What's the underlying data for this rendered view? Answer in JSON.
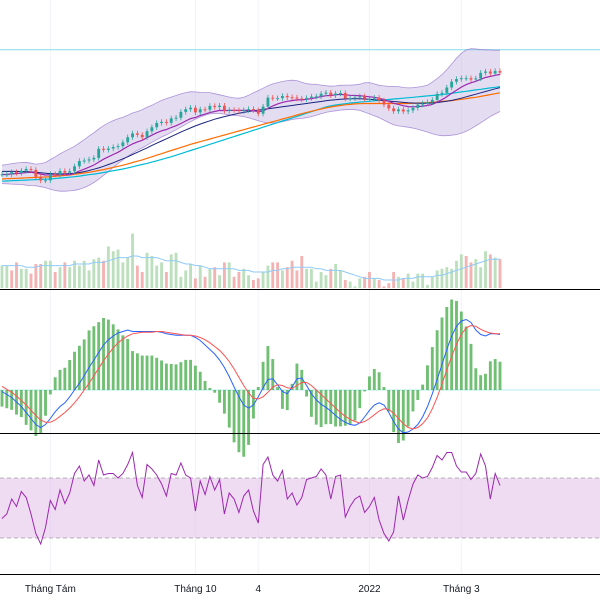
{
  "colors": {
    "up": "#26a69a",
    "down": "#ef5350",
    "bb_fill": "#b39ddb",
    "bb_line": "#7e57c2",
    "ma_fast": "#9c27b0",
    "ma_mid": "#1a237e",
    "ma_slow": "#ff6d00",
    "ma_long": "#00bcd4",
    "macd": "#2962ff",
    "signal": "#ff5252",
    "hist": "#4caf50",
    "rsi": "#9c27b0",
    "rsi_band": "#e1bee7",
    "grid": "#f0f3fa",
    "divider": "#000000"
  },
  "x_axis": {
    "ticks": [
      {
        "label": "Tháng Tám",
        "index": 10
      },
      {
        "label": "Tháng 10",
        "index": 40
      },
      {
        "label": "4",
        "index": 53
      },
      {
        "label": "2022",
        "index": 76
      },
      {
        "label": "Tháng 3",
        "index": 95
      }
    ]
  },
  "chart_data": [
    {
      "type": "line",
      "panel": "price",
      "x_count": 104,
      "y_range": [
        0,
        100
      ],
      "price_close": [
        34.1,
        34.1,
        35.1,
        34.7,
        35.7,
        36.5,
        36.1,
        33.0,
        31.3,
        31.4,
        34.2,
        34.0,
        35.6,
        34.8,
        35.5,
        37.7,
        40.1,
        40.3,
        40.8,
        41.5,
        45.6,
        45.1,
        45.7,
        46.4,
        46.8,
        48.5,
        50.8,
        52.5,
        51.9,
        50.8,
        53.5,
        55.3,
        57.2,
        57.7,
        57.3,
        59.3,
        59.6,
        62.2,
        63.4,
        64.1,
        62.0,
        63.4,
        63.2,
        64.9,
        64.4,
        65.0,
        62.7,
        63.1,
        63.0,
        62.6,
        63.0,
        63.5,
        63.0,
        61.4,
        64.6,
        68.6,
        68.4,
        68.4,
        69.4,
        68.8,
        68.7,
        68.2,
        67.8,
        68.5,
        69.1,
        69.2,
        70.4,
        70.9,
        69.7,
        70.5,
        70.7,
        68.2,
        68.3,
        68.7,
        69.2,
        68.2,
        68.2,
        68.6,
        67.4,
        65.5,
        63.8,
        62.5,
        63.3,
        62.4,
        62.9,
        64.0,
        65.5,
        66.0,
        66.6,
        67.6,
        70.3,
        70.8,
        73.2,
        75.8,
        77.0,
        77.4,
        77.4,
        76.8,
        77.3,
        79.8,
        80.4,
        79.5,
        80.6,
        79.9
      ],
      "ma_fast": [
        34.0,
        34.0,
        34.3,
        34.4,
        34.6,
        34.9,
        35.0,
        34.7,
        34.2,
        33.8,
        33.9,
        33.8,
        33.9,
        33.9,
        33.9,
        34.6,
        35.6,
        36.4,
        37.3,
        38.3,
        39.6,
        40.9,
        42.0,
        43.0,
        44.0,
        45.3,
        46.6,
        47.8,
        48.7,
        49.4,
        50.6,
        51.7,
        52.8,
        53.7,
        54.3,
        55.2,
        56.0,
        57.0,
        58.1,
        59.2,
        59.7,
        60.6,
        61.2,
        61.9,
        62.4,
        62.9,
        62.8,
        62.9,
        62.9,
        62.9,
        62.9,
        62.9,
        62.7,
        62.3,
        62.6,
        63.8,
        64.9,
        65.8,
        66.5,
        67.0,
        67.3,
        67.6,
        67.6,
        67.9,
        68.2,
        68.6,
        69.1,
        69.5,
        69.6,
        69.9,
        70.1,
        69.9,
        69.7,
        69.6,
        69.5,
        69.3,
        69.0,
        68.8,
        68.4,
        67.7,
        67.0,
        66.1,
        65.6,
        65.0,
        64.6,
        64.5,
        64.6,
        64.8,
        65.1,
        65.6,
        66.6,
        67.7,
        69.0,
        70.6,
        72.0,
        73.4,
        74.5,
        75.3,
        76.0,
        76.9,
        77.7,
        78.2,
        78.7,
        79.1
      ],
      "bb_upper": [
        38.2,
        38.5,
        38.9,
        39.2,
        39.4,
        39.5,
        39.1,
        38.7,
        38.9,
        39.4,
        40.7,
        42.0,
        43.3,
        44.5,
        45.6,
        46.7,
        48.2,
        49.7,
        51.3,
        52.8,
        54.5,
        56.0,
        57.3,
        58.3,
        59.1,
        59.8,
        60.7,
        61.7,
        62.4,
        63.2,
        64.3,
        65.2,
        66.3,
        67.4,
        68.2,
        68.9,
        69.6,
        70.3,
        70.9,
        71.3,
        71.2,
        71.0,
        70.9,
        70.9,
        70.4,
        69.9,
        69.4,
        68.9,
        68.5,
        68.4,
        68.8,
        69.7,
        70.8,
        71.8,
        72.9,
        74.0,
        74.8,
        75.4,
        75.9,
        76.3,
        76.5,
        76.3,
        75.6,
        74.9,
        74.7,
        74.6,
        74.3,
        74.0,
        73.8,
        73.9,
        74.2,
        74.3,
        74.3,
        74.4,
        74.7,
        75.3,
        75.4,
        74.8,
        74.2,
        73.9,
        73.7,
        73.7,
        73.6,
        73.2,
        73.0,
        73.1,
        73.4,
        73.7,
        74.3,
        75.6,
        77.2,
        79.0,
        81.2,
        83.8,
        86.4,
        88.6,
        90.1,
        90.7,
        90.6,
        90.3,
        90.2,
        90.1,
        90.0,
        90.0
      ],
      "bb_lower": [
        29.9,
        29.8,
        29.7,
        29.6,
        29.5,
        29.2,
        29.0,
        28.9,
        28.5,
        28.1,
        27.4,
        26.8,
        26.5,
        26.5,
        26.6,
        26.9,
        27.4,
        28.1,
        29.1,
        30.4,
        31.9,
        33.6,
        35.3,
        37.2,
        38.9,
        40.6,
        42.2,
        43.6,
        44.9,
        46.0,
        47.2,
        48.5,
        49.7,
        50.9,
        51.9,
        53.0,
        54.2,
        55.4,
        56.6,
        57.8,
        58.9,
        59.9,
        60.7,
        61.3,
        61.5,
        61.5,
        61.2,
        60.9,
        60.6,
        60.4,
        60.1,
        59.6,
        58.9,
        58.2,
        57.6,
        57.2,
        57.2,
        57.4,
        57.8,
        58.3,
        58.8,
        59.1,
        59.3,
        59.6,
        60.1,
        60.7,
        61.4,
        62.0,
        62.4,
        62.7,
        63.0,
        63.2,
        63.3,
        63.2,
        62.9,
        62.1,
        61.3,
        60.5,
        59.6,
        58.5,
        57.4,
        56.4,
        55.9,
        55.6,
        55.3,
        54.9,
        54.4,
        53.8,
        53.1,
        52.4,
        51.8,
        51.5,
        51.5,
        51.7,
        52.0,
        52.6,
        53.5,
        54.6,
        55.9,
        57.3,
        58.7,
        60.1,
        61.3,
        62.4
      ],
      "ma_mid": [
        35.4,
        35.4,
        35.4,
        35.4,
        35.3,
        35.3,
        35.2,
        35.0,
        34.8,
        34.6,
        34.4,
        34.3,
        34.3,
        34.3,
        34.4,
        34.6,
        34.9,
        35.3,
        35.8,
        36.4,
        37.0,
        37.7,
        38.5,
        39.3,
        40.2,
        41.1,
        42.0,
        43.0,
        44.0,
        45.0,
        46.0,
        47.1,
        48.1,
        49.1,
        50.1,
        51.1,
        52.1,
        53.1,
        54.1,
        55.0,
        55.9,
        56.7,
        57.5,
        58.2,
        58.9,
        59.5,
        60.1,
        60.6,
        61.1,
        61.6,
        62.0,
        62.4,
        62.7,
        63.0,
        63.3,
        63.6,
        63.9,
        64.2,
        64.5,
        64.8,
        65.1,
        65.4,
        65.7,
        66.0,
        66.3,
        66.6,
        66.9,
        67.2,
        67.5,
        67.7,
        67.9,
        68.0,
        68.1,
        68.1,
        68.1,
        68.0,
        67.9,
        67.7,
        67.5,
        67.3,
        67.1,
        66.9,
        66.7,
        66.5,
        66.3,
        66.2,
        66.1,
        66.1,
        66.1,
        66.2,
        66.4,
        66.7,
        67.0,
        67.4,
        67.9,
        68.4,
        69.0,
        69.6,
        70.2,
        70.8,
        71.4,
        72.0,
        72.6,
        73.1
      ],
      "ma_slow": [
        32.0,
        32.1,
        32.2,
        32.3,
        32.4,
        32.5,
        32.6,
        32.7,
        32.8,
        32.9,
        33.0,
        33.2,
        33.4,
        33.6,
        33.8,
        34.1,
        34.4,
        34.7,
        35.0,
        35.4,
        35.8,
        36.2,
        36.7,
        37.2,
        37.7,
        38.2,
        38.8,
        39.4,
        40.0,
        40.6,
        41.3,
        42.0,
        42.7,
        43.4,
        44.1,
        44.8,
        45.5,
        46.2,
        46.9,
        47.6,
        48.2,
        48.8,
        49.4,
        50.0,
        50.6,
        51.2,
        51.8,
        52.4,
        53.0,
        53.6,
        54.2,
        54.8,
        55.4,
        56.0,
        56.6,
        57.2,
        57.8,
        58.4,
        59.0,
        59.6,
        60.2,
        60.8,
        61.4,
        62.0,
        62.5,
        63.0,
        63.5,
        64.0,
        64.4,
        64.8,
        65.1,
        65.4,
        65.6,
        65.8,
        65.9,
        66.0,
        66.0,
        66.0,
        66.0,
        66.0,
        66.0,
        66.0,
        66.0,
        66.0,
        66.0,
        66.1,
        66.2,
        66.3,
        66.4,
        66.5,
        66.7,
        66.9,
        67.1,
        67.3,
        67.6,
        67.9,
        68.2,
        68.5,
        68.8,
        69.2,
        69.6,
        70.0,
        70.4,
        70.8
      ],
      "ma_long": [
        31.0,
        31.1,
        31.2,
        31.3,
        31.4,
        31.5,
        31.6,
        31.7,
        31.8,
        31.9,
        32.0,
        32.2,
        32.4,
        32.6,
        32.8,
        33.0,
        33.3,
        33.6,
        33.9,
        34.2,
        34.5,
        34.9,
        35.3,
        35.7,
        36.1,
        36.5,
        37.0,
        37.5,
        38.0,
        38.5,
        39.0,
        39.6,
        40.2,
        40.8,
        41.4,
        42.0,
        42.7,
        43.4,
        44.1,
        44.8,
        45.5,
        46.2,
        46.9,
        47.6,
        48.3,
        49.0,
        49.7,
        50.4,
        51.1,
        51.8,
        52.5,
        53.2,
        53.9,
        54.6,
        55.3,
        56.0,
        56.7,
        57.4,
        58.1,
        58.8,
        59.5,
        60.2,
        60.9,
        61.6,
        62.3,
        63.0,
        63.7,
        64.4,
        64.9,
        65.3,
        65.6,
        65.9,
        66.2,
        66.4,
        66.6,
        66.8,
        67.0,
        67.2,
        67.4,
        67.6,
        67.8,
        68.0,
        68.2,
        68.4,
        68.6,
        68.8,
        69.0,
        69.2,
        69.4,
        69.6,
        69.8,
        70.0,
        70.3,
        70.6,
        70.9,
        71.2,
        71.5,
        71.8,
        72.1,
        72.4,
        72.7,
        73.0,
        73.3,
        73.6
      ],
      "volume": [
        14,
        14,
        11,
        16,
        12,
        12,
        9,
        15,
        15,
        17,
        17,
        10,
        13,
        16,
        13,
        17,
        14,
        17,
        11,
        18,
        19,
        17,
        26,
        23,
        24,
        16,
        19,
        34,
        14,
        10,
        22,
        20,
        14,
        16,
        10,
        21,
        22,
        7,
        11,
        15,
        6,
        14,
        7,
        12,
        13,
        8,
        16,
        16,
        7,
        10,
        12,
        8,
        5,
        6,
        10,
        14,
        16,
        16,
        11,
        13,
        17,
        11,
        20,
        12,
        12,
        4,
        10,
        8,
        12,
        15,
        11,
        5,
        4,
        1,
        6,
        7,
        10,
        6,
        5,
        1,
        3,
        10,
        7,
        6,
        9,
        4,
        9,
        9,
        2,
        7,
        11,
        12,
        13,
        12,
        17,
        21,
        20,
        16,
        18,
        13,
        23,
        21,
        19,
        18
      ],
      "volume_up": [
        true,
        true,
        false,
        false,
        true,
        true,
        false,
        false,
        false,
        true,
        true,
        false,
        true,
        false,
        true,
        true,
        true,
        true,
        true,
        true,
        true,
        false,
        true,
        true,
        true,
        true,
        true,
        true,
        false,
        false,
        true,
        true,
        true,
        true,
        false,
        true,
        true,
        true,
        true,
        true,
        false,
        true,
        false,
        true,
        false,
        true,
        false,
        true,
        false,
        false,
        true,
        true,
        false,
        false,
        true,
        true,
        false,
        false,
        true,
        false,
        false,
        false,
        false,
        true,
        true,
        true,
        true,
        true,
        false,
        true,
        true,
        false,
        true,
        true,
        true,
        false,
        false,
        true,
        false,
        false,
        false,
        false,
        true,
        false,
        true,
        true,
        true,
        true,
        true,
        true,
        true,
        true,
        true,
        true,
        true,
        true,
        false,
        false,
        true,
        true,
        true,
        false,
        true,
        false
      ],
      "volume_ma": [
        14,
        14,
        14,
        14,
        14,
        13,
        13,
        13,
        14,
        14,
        14,
        14,
        14,
        14,
        14,
        15,
        15,
        15,
        15,
        16,
        16,
        16,
        17,
        18,
        19,
        19,
        19,
        20,
        20,
        19,
        19,
        19,
        19,
        18,
        17,
        17,
        17,
        16,
        15,
        15,
        14,
        14,
        13,
        12,
        12,
        12,
        12,
        12,
        12,
        11,
        11,
        11,
        10,
        10,
        10,
        10,
        11,
        11,
        12,
        12,
        13,
        13,
        13,
        13,
        13,
        12,
        12,
        11,
        11,
        11,
        11,
        10,
        9,
        8,
        7,
        6,
        6,
        6,
        6,
        5,
        5,
        5,
        5,
        6,
        6,
        6,
        7,
        7,
        7,
        7,
        8,
        8,
        9,
        10,
        11,
        12,
        13,
        14,
        15,
        16,
        17,
        18,
        18,
        18
      ]
    },
    {
      "type": "line",
      "panel": "macd",
      "x_count": 104,
      "y_range": [
        -10,
        10
      ],
      "macd": [
        -0.2,
        -0.6,
        -1.0,
        -1.6,
        -2.2,
        -3.0,
        -3.8,
        -4.6,
        -5.0,
        -4.6,
        -3.8,
        -2.9,
        -2.2,
        -1.7,
        -0.9,
        0.0,
        0.9,
        1.9,
        3.0,
        4.0,
        5.0,
        6.0,
        6.7,
        7.2,
        7.6,
        7.8,
        8.0,
        7.8,
        7.8,
        7.8,
        7.8,
        7.8,
        7.8,
        7.7,
        7.5,
        7.4,
        7.3,
        7.3,
        7.3,
        7.3,
        7.0,
        6.6,
        6.0,
        5.4,
        4.8,
        4.0,
        3.0,
        1.8,
        0.4,
        -0.9,
        -2.0,
        -2.4,
        -2.0,
        -0.9,
        0.3,
        1.4,
        1.5,
        0.7,
        -0.2,
        -0.5,
        0.4,
        1.5,
        1.6,
        0.6,
        -0.5,
        -1.3,
        -1.9,
        -2.3,
        -2.8,
        -3.4,
        -3.9,
        -4.3,
        -4.6,
        -4.7,
        -4.4,
        -3.6,
        -2.7,
        -2.0,
        -1.7,
        -2.0,
        -3.0,
        -4.2,
        -5.2,
        -5.7,
        -5.6,
        -5.2,
        -4.6,
        -3.6,
        -2.2,
        -0.5,
        1.4,
        3.4,
        5.4,
        7.2,
        8.5,
        9.2,
        9.4,
        9.0,
        8.0,
        7.4,
        7.2,
        7.5,
        7.5,
        7.4
      ],
      "signal": [
        0.5,
        0.1,
        -0.3,
        -0.8,
        -1.4,
        -2.0,
        -2.7,
        -3.4,
        -4.0,
        -4.3,
        -4.3,
        -4.0,
        -3.5,
        -3.0,
        -2.4,
        -1.7,
        -0.9,
        0.0,
        0.9,
        1.9,
        2.9,
        3.9,
        4.8,
        5.6,
        6.3,
        6.8,
        7.2,
        7.5,
        7.6,
        7.7,
        7.7,
        7.7,
        7.8,
        7.8,
        7.7,
        7.6,
        7.5,
        7.4,
        7.3,
        7.3,
        7.2,
        7.0,
        6.7,
        6.3,
        5.8,
        5.3,
        4.6,
        3.8,
        2.8,
        1.7,
        0.6,
        -0.4,
        -1.1,
        -1.2,
        -0.9,
        -0.3,
        0.4,
        0.7,
        0.6,
        0.3,
        0.2,
        0.6,
        1.0,
        1.0,
        0.6,
        0.0,
        -0.6,
        -1.2,
        -1.8,
        -2.4,
        -3.0,
        -3.5,
        -3.9,
        -4.2,
        -4.4,
        -4.2,
        -3.8,
        -3.3,
        -2.8,
        -2.5,
        -2.6,
        -3.1,
        -3.8,
        -4.5,
        -5.0,
        -5.2,
        -5.0,
        -4.5,
        -3.7,
        -2.5,
        -1.0,
        0.8,
        2.7,
        4.5,
        6.1,
        7.4,
        8.3,
        8.6,
        8.5,
        8.1,
        7.8,
        7.6,
        7.5,
        7.5
      ]
    },
    {
      "type": "line",
      "panel": "rsi",
      "x_count": 104,
      "y_range": [
        10,
        90
      ],
      "band": [
        30,
        70
      ],
      "rsi": [
        43,
        46,
        56,
        51,
        61,
        57,
        46,
        33,
        26,
        37,
        55,
        49,
        62,
        53,
        60,
        73,
        78,
        68,
        72,
        65,
        82,
        72,
        73,
        73,
        70,
        73,
        79,
        87,
        65,
        57,
        79,
        76,
        72,
        66,
        58,
        73,
        72,
        80,
        72,
        70,
        48,
        68,
        59,
        71,
        62,
        69,
        46,
        60,
        56,
        47,
        58,
        62,
        48,
        40,
        79,
        84,
        72,
        68,
        75,
        56,
        60,
        52,
        57,
        69,
        70,
        71,
        76,
        72,
        56,
        71,
        72,
        44,
        51,
        56,
        58,
        47,
        51,
        57,
        42,
        33,
        28,
        34,
        58,
        42,
        55,
        66,
        72,
        70,
        71,
        77,
        85,
        82,
        87,
        87,
        78,
        74,
        74,
        69,
        73,
        86,
        78,
        56,
        73,
        65
      ]
    }
  ]
}
